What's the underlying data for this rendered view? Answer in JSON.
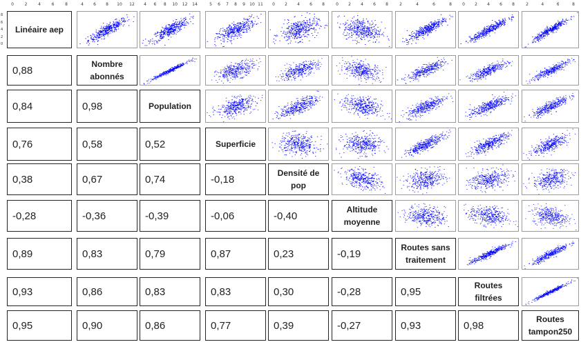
{
  "chart_data": {
    "type": "scatter-matrix",
    "variables": [
      "Linéaire aep",
      "Nombre abonnés",
      "Population",
      "Superficie",
      "Densité de pop",
      "Altitude moyenne",
      "Routes sans traitement",
      "Routes filtrées",
      "Routes tampon250"
    ],
    "correlations": [
      [
        null,
        null,
        null,
        null,
        null,
        null,
        null,
        null,
        null
      ],
      [
        "0,88",
        null,
        null,
        null,
        null,
        null,
        null,
        null,
        null
      ],
      [
        "0,84",
        "0,98",
        null,
        null,
        null,
        null,
        null,
        null,
        null
      ],
      [
        "0,76",
        "0,58",
        "0,52",
        null,
        null,
        null,
        null,
        null,
        null
      ],
      [
        "0,38",
        "0,67",
        "0,74",
        "-0,18",
        null,
        null,
        null,
        null,
        null
      ],
      [
        "-0,28",
        "-0,36",
        "-0,39",
        "-0,06",
        "-0,40",
        null,
        null,
        null,
        null
      ],
      [
        "0,89",
        "0,83",
        "0,79",
        "0,87",
        "0,23",
        "-0,19",
        null,
        null,
        null
      ],
      [
        "0,93",
        "0,86",
        "0,83",
        "0,83",
        "0,30",
        "-0,28",
        "0,95",
        null,
        null
      ],
      [
        "0,95",
        "0,90",
        "0,86",
        "0,77",
        "0,39",
        "-0,27",
        "0,93",
        "0,98",
        null
      ]
    ],
    "top_tick_labels": [
      [
        "0",
        "2",
        "4",
        "6",
        "8"
      ],
      [
        "4",
        "6",
        "8",
        "10",
        "12"
      ],
      [
        "4",
        "6",
        "8",
        "10",
        "12",
        "14"
      ],
      [
        "5",
        "6",
        "7",
        "8",
        "9",
        "10",
        "11"
      ],
      [
        "0",
        "2",
        "4",
        "6",
        "8"
      ],
      [
        "0",
        "2",
        "4",
        "6",
        "8"
      ],
      [
        "2",
        "4",
        "6",
        "8"
      ],
      [
        "0",
        "2",
        "4",
        "6",
        "8"
      ],
      [
        "2",
        "4",
        "6",
        "8"
      ]
    ],
    "left_tick_labels": [
      "0",
      "2",
      "4",
      "6",
      "8"
    ],
    "point_color": "#0000ff"
  }
}
